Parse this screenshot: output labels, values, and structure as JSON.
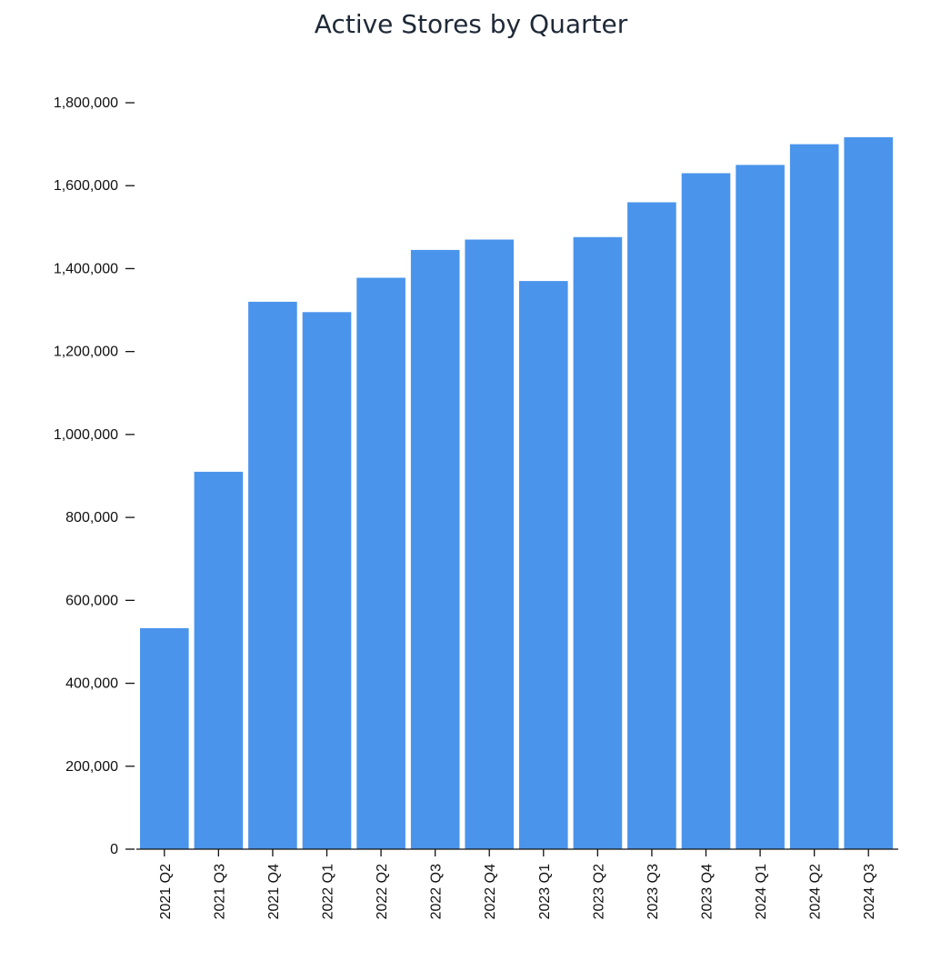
{
  "chart_data": {
    "type": "bar",
    "title": "Active Stores by Quarter",
    "xlabel": "",
    "ylabel": "",
    "categories": [
      "2021 Q2",
      "2021 Q3",
      "2021 Q4",
      "2022 Q1",
      "2022 Q2",
      "2022 Q3",
      "2022 Q4",
      "2023 Q1",
      "2023 Q2",
      "2023 Q3",
      "2023 Q4",
      "2024 Q1",
      "2024 Q2",
      "2024 Q3"
    ],
    "values": [
      533000,
      910000,
      1320000,
      1295000,
      1378000,
      1445000,
      1470000,
      1370000,
      1476000,
      1560000,
      1630000,
      1650000,
      1700000,
      1717000
    ],
    "ylim": [
      0,
      1800000
    ],
    "yticks": [
      0,
      200000,
      400000,
      600000,
      800000,
      1000000,
      1200000,
      1400000,
      1600000,
      1800000
    ],
    "ytick_labels": [
      "0",
      "200,000",
      "400,000",
      "600,000",
      "800,000",
      "1,000,000",
      "1,200,000",
      "1,400,000",
      "1,600,000",
      "1,800,000"
    ],
    "grid": false,
    "legend": "none",
    "bar_color": "#4a94ec"
  }
}
